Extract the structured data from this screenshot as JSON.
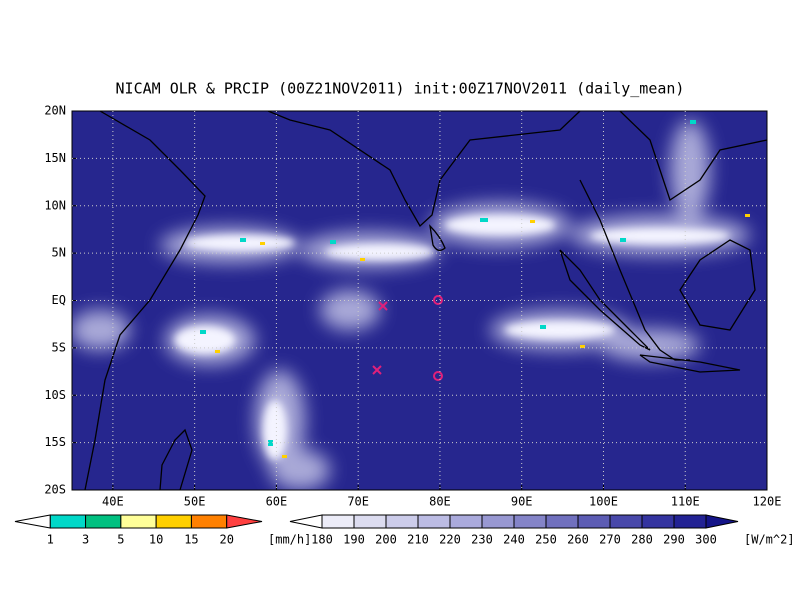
{
  "title": "NICAM OLR & PRCIP (00Z21NOV2011) init:00Z17NOV2011 (daily_mean)",
  "lat_labels": [
    "20N",
    "15N",
    "10N",
    "5N",
    "EQ",
    "5S",
    "10S",
    "15S",
    "20S"
  ],
  "lon_labels": [
    "40E",
    "50E",
    "60E",
    "70E",
    "80E",
    "90E",
    "100E",
    "110E",
    "120E"
  ],
  "precip_colorbar": {
    "labels": [
      "1",
      "3",
      "5",
      "10",
      "15",
      "20"
    ],
    "unit": "[mm/h]",
    "colors": [
      "#00d8c8",
      "#00c080",
      "#ffff99",
      "#ffd000",
      "#ff8000",
      "#ff4040"
    ]
  },
  "olr_colorbar": {
    "labels": [
      "180",
      "190",
      "200",
      "210",
      "220",
      "230",
      "240",
      "250",
      "260",
      "270",
      "280",
      "290",
      "300"
    ],
    "unit": "[W/m^2]",
    "colors": [
      "#ececf8",
      "#dcdcf0",
      "#ccccea",
      "#bcbce4",
      "#aaaadc",
      "#9898d2",
      "#8484c8",
      "#7070be",
      "#5c5cb4",
      "#4848aa",
      "#3434a0",
      "#222294",
      "#141488"
    ]
  }
}
